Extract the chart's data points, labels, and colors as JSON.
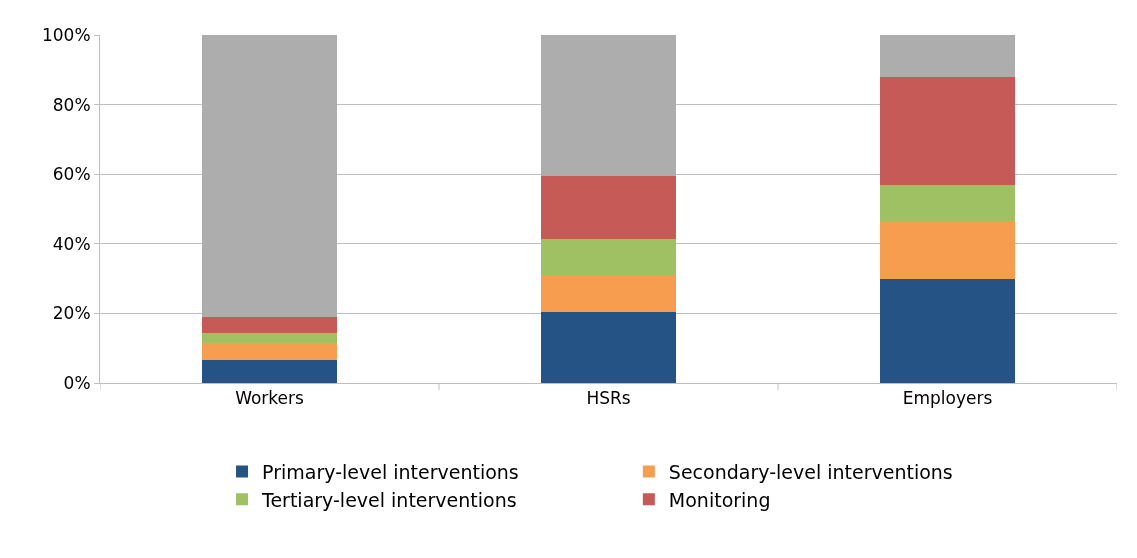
{
  "chart_data": {
    "type": "bar",
    "stacked": true,
    "categories": [
      "Workers",
      "HSRs",
      "Employers"
    ],
    "series": [
      {
        "name": "Primary-level interventions",
        "color": "#255385",
        "values": [
          6.5,
          20.5,
          30
        ]
      },
      {
        "name": "Secondary-level interventions",
        "color": "#f79d4f",
        "values": [
          5,
          10.5,
          16.5
        ]
      },
      {
        "name": "Tertiary-level interventions",
        "color": "#9fc164",
        "values": [
          3,
          10.5,
          10.5
        ]
      },
      {
        "name": "Monitoring",
        "color": "#c55a57",
        "values": [
          4.5,
          18,
          31
        ]
      },
      {
        "color": "#adadad",
        "values": [
          81,
          40.5,
          12
        ]
      }
    ],
    "ylim": [
      0,
      100
    ],
    "yticks": [
      {
        "value": 0,
        "label": "0%"
      },
      {
        "value": 20,
        "label": "20%"
      },
      {
        "value": 40,
        "label": "40%"
      },
      {
        "value": 60,
        "label": "60%"
      },
      {
        "value": 80,
        "label": "80%"
      },
      {
        "value": 100,
        "label": "100%"
      }
    ],
    "grid": "y",
    "legend": "bottom"
  }
}
